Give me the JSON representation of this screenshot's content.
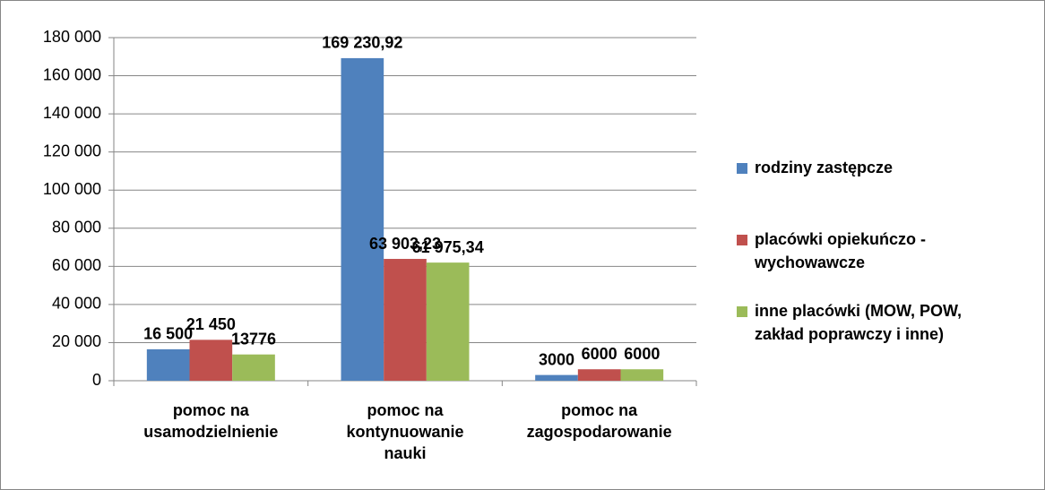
{
  "chart_data": {
    "type": "bar",
    "categories": [
      "pomoc na usamodzielnienie",
      "pomoc na kontynuowanie nauki",
      "pomoc na zagospodarowanie"
    ],
    "series": [
      {
        "name": "rodziny zastępcze",
        "color": "#4f81bd",
        "values": [
          16500,
          169230.92,
          3000
        ],
        "value_labels": [
          "16 500",
          "169 230,92",
          "3000"
        ]
      },
      {
        "name": "placówki opiekuńczo - wychowawcze",
        "color": "#c0504d",
        "values": [
          21450,
          63903.23,
          6000
        ],
        "value_labels": [
          "21 450",
          "63 903,23",
          "6000"
        ]
      },
      {
        "name": "inne placówki (MOW, POW, zakład poprawczy i inne)",
        "color": "#9bbb59",
        "values": [
          13776,
          61975.34,
          6000
        ],
        "value_labels": [
          "13776",
          "61 975,34",
          "6000"
        ]
      }
    ],
    "ylim": [
      0,
      180000
    ],
    "yticks": [
      0,
      {
        "value": 20000,
        "label": "20 000"
      },
      {
        "value": 40000,
        "label": "40 000"
      },
      {
        "value": 60000,
        "label": "60 000"
      },
      {
        "value": 80000,
        "label": "80 000"
      },
      {
        "value": 100000,
        "label": "100 000"
      },
      {
        "value": 120000,
        "label": "120 000"
      },
      {
        "value": 140000,
        "label": "140 000"
      },
      {
        "value": 160000,
        "label": "160 000"
      },
      {
        "value": 180000,
        "label": "180 000"
      }
    ],
    "grid": true,
    "legend": "right"
  }
}
